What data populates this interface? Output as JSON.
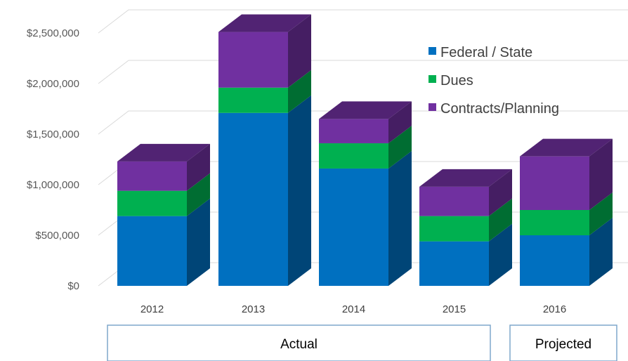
{
  "chart_data": {
    "type": "bar",
    "stacked": true,
    "three_d": true,
    "categories": [
      "2012",
      "2013",
      "2014",
      "2015",
      "2016"
    ],
    "series": [
      {
        "name": "Federal / State",
        "values": [
          690000,
          1710000,
          1160000,
          440000,
          500000
        ],
        "color": "#0070c0"
      },
      {
        "name": "Dues",
        "values": [
          250000,
          250000,
          250000,
          250000,
          250000
        ],
        "color": "#00b050"
      },
      {
        "name": "Contracts/Planning",
        "values": [
          290000,
          550000,
          240000,
          290000,
          530000
        ],
        "color": "#7030a0"
      }
    ],
    "y_ticks": [
      "$0",
      "$500,000",
      "$1,000,000",
      "$1,500,000",
      "$2,000,000",
      "$2,500,000"
    ],
    "ylim": [
      0,
      2500000
    ],
    "grid": true,
    "legend_position": "top-right",
    "groups": [
      {
        "label": "Actual",
        "categories": [
          "2012",
          "2013",
          "2014",
          "2015"
        ]
      },
      {
        "label": "Projected",
        "categories": [
          "2016"
        ]
      }
    ]
  }
}
